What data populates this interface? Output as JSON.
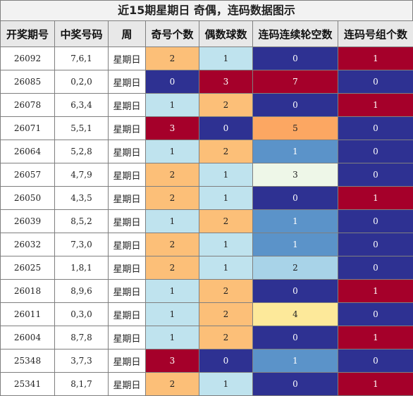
{
  "title": "近15期星期日 奇偶，连码数据图示",
  "headers": [
    "开奖期号",
    "中奖号码",
    "周",
    "奇号个数",
    "偶数球数",
    "连码连续轮空数",
    "连码号组个数"
  ],
  "rows": [
    {
      "issue": "26092",
      "numbers": "7,6,1",
      "week": "星期日",
      "odd": "2",
      "even": "1",
      "miss": "0",
      "groups": "1"
    },
    {
      "issue": "26085",
      "numbers": "0,2,0",
      "week": "星期日",
      "odd": "0",
      "even": "3",
      "miss": "7",
      "groups": "0"
    },
    {
      "issue": "26078",
      "numbers": "6,3,4",
      "week": "星期日",
      "odd": "1",
      "even": "2",
      "miss": "0",
      "groups": "1"
    },
    {
      "issue": "26071",
      "numbers": "5,5,1",
      "week": "星期日",
      "odd": "3",
      "even": "0",
      "miss": "5",
      "groups": "0"
    },
    {
      "issue": "26064",
      "numbers": "5,2,8",
      "week": "星期日",
      "odd": "1",
      "even": "2",
      "miss": "1",
      "groups": "0"
    },
    {
      "issue": "26057",
      "numbers": "4,7,9",
      "week": "星期日",
      "odd": "2",
      "even": "1",
      "miss": "3",
      "groups": "0"
    },
    {
      "issue": "26050",
      "numbers": "4,3,5",
      "week": "星期日",
      "odd": "2",
      "even": "1",
      "miss": "0",
      "groups": "1"
    },
    {
      "issue": "26039",
      "numbers": "8,5,2",
      "week": "星期日",
      "odd": "1",
      "even": "2",
      "miss": "1",
      "groups": "0"
    },
    {
      "issue": "26032",
      "numbers": "7,3,0",
      "week": "星期日",
      "odd": "2",
      "even": "1",
      "miss": "1",
      "groups": "0"
    },
    {
      "issue": "26025",
      "numbers": "1,8,1",
      "week": "星期日",
      "odd": "2",
      "even": "1",
      "miss": "2",
      "groups": "0"
    },
    {
      "issue": "26018",
      "numbers": "8,9,6",
      "week": "星期日",
      "odd": "1",
      "even": "2",
      "miss": "0",
      "groups": "1"
    },
    {
      "issue": "26011",
      "numbers": "0,3,0",
      "week": "星期日",
      "odd": "1",
      "even": "2",
      "miss": "4",
      "groups": "0"
    },
    {
      "issue": "26004",
      "numbers": "8,7,8",
      "week": "星期日",
      "odd": "1",
      "even": "2",
      "miss": "0",
      "groups": "1"
    },
    {
      "issue": "25348",
      "numbers": "3,7,3",
      "week": "星期日",
      "odd": "3",
      "even": "0",
      "miss": "1",
      "groups": "0"
    },
    {
      "issue": "25341",
      "numbers": "8,1,7",
      "week": "星期日",
      "odd": "2",
      "even": "1",
      "miss": "0",
      "groups": "1"
    }
  ],
  "colors": {
    "odd_even": {
      "0": "#2e3192",
      "1": "#bfe3ee",
      "2": "#fcbf78",
      "3": "#a5002a"
    },
    "miss": {
      "0": "#2e3192",
      "1": "#5b93c9",
      "2": "#a8d3e8",
      "3": "#eef7e8",
      "4": "#fde99a",
      "5": "#fca762",
      "7": "#a5002a"
    },
    "groups": {
      "0": "#2e3192",
      "1": "#a5002a"
    },
    "dark_text": "#222222",
    "light_text": "#ffffff"
  }
}
